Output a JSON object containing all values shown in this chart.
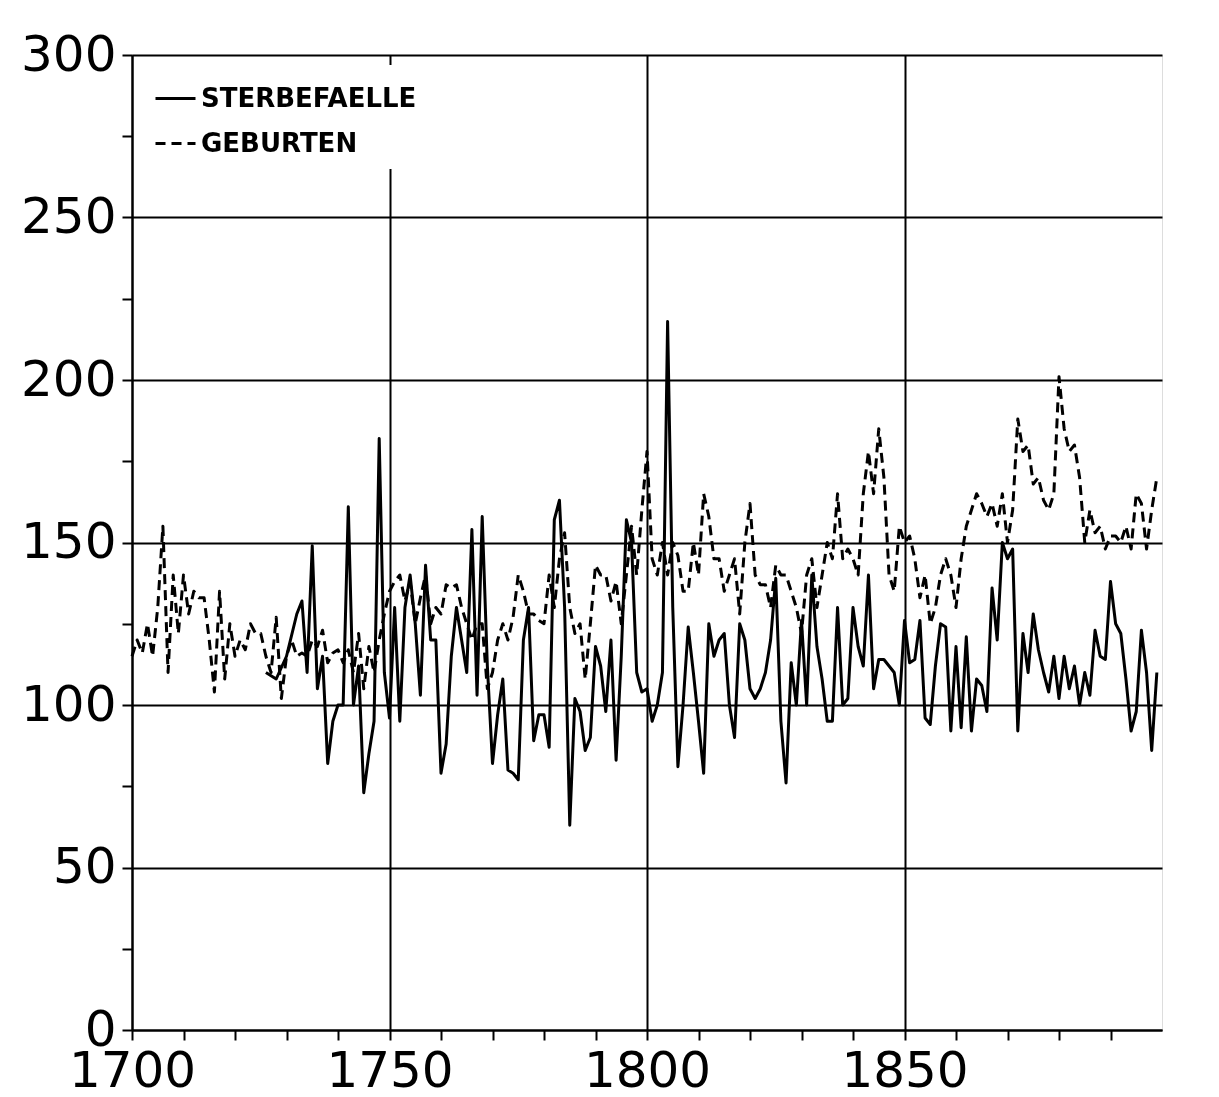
{
  "chart_data": {
    "type": "line",
    "xlim": [
      1700,
      1900
    ],
    "ylim": [
      0,
      300
    ],
    "xticks": [
      1700,
      {
        "value": 1710,
        "label": null
      },
      {
        "value": 1720,
        "label": null
      },
      {
        "value": 1730,
        "label": null
      },
      {
        "value": 1740,
        "label": null
      },
      1750,
      {
        "value": 1760,
        "label": null
      },
      {
        "value": 1770,
        "label": null
      },
      {
        "value": 1780,
        "label": null
      },
      {
        "value": 1790,
        "label": null
      },
      1800,
      {
        "value": 1810,
        "label": null
      },
      {
        "value": 1820,
        "label": null
      },
      {
        "value": 1830,
        "label": null
      },
      {
        "value": 1840,
        "label": null
      },
      1850,
      {
        "value": 1860,
        "label": null
      },
      {
        "value": 1870,
        "label": null
      },
      {
        "value": 1880,
        "label": null
      },
      {
        "value": 1890,
        "label": null
      }
    ],
    "yticks": [
      0,
      {
        "value": 25,
        "label": null
      },
      50,
      {
        "value": 75,
        "label": null
      },
      100,
      {
        "value": 125,
        "label": null
      },
      150,
      {
        "value": 175,
        "label": null
      },
      200,
      {
        "value": 225,
        "label": null
      },
      250,
      {
        "value": 275,
        "label": null
      },
      300
    ],
    "grid": true,
    "legend": "top left",
    "marker": "none",
    "series": [
      {
        "name": "STERBEFAELLE",
        "color": "#000000",
        "line_style": "solid",
        "x": [
          1726,
          1728,
          1730,
          1732,
          1733,
          1734,
          1735,
          1736,
          1737,
          1738,
          1739,
          1740,
          1741,
          1742,
          1743,
          1744,
          1745,
          1746,
          1747,
          1748,
          1749,
          1750,
          1751,
          1752,
          1753,
          1754,
          1755,
          1756,
          1757,
          1758,
          1759,
          1760,
          1761,
          1762,
          1763,
          1764,
          1765,
          1766,
          1767,
          1768,
          1769,
          1770,
          1771,
          1772,
          1773,
          1774,
          1775,
          1776,
          1777,
          1778,
          1779,
          1780,
          1781,
          1782,
          1783,
          1784,
          1785,
          1786,
          1787,
          1788,
          1789,
          1790,
          1791,
          1792,
          1793,
          1794,
          1795,
          1796,
          1797,
          1798,
          1799,
          1800,
          1801,
          1802,
          1803,
          1804,
          1805,
          1806,
          1807,
          1808,
          1809,
          1810,
          1811,
          1812,
          1813,
          1814,
          1815,
          1816,
          1817,
          1818,
          1819,
          1820,
          1821,
          1822,
          1823,
          1824,
          1825,
          1826,
          1827,
          1828,
          1829,
          1830,
          1831,
          1832,
          1833,
          1834,
          1835,
          1836,
          1837,
          1838,
          1839,
          1840,
          1841,
          1842,
          1843,
          1844,
          1845,
          1846,
          1847,
          1848,
          1849,
          1850,
          1851,
          1852,
          1853,
          1854,
          1855,
          1856,
          1857,
          1858,
          1859,
          1860,
          1861,
          1862,
          1863,
          1864,
          1865,
          1866,
          1867,
          1868,
          1869,
          1870,
          1871,
          1872,
          1873,
          1874,
          1875,
          1876,
          1877,
          1878,
          1879,
          1880,
          1881,
          1882,
          1883,
          1884,
          1885,
          1886,
          1887,
          1888,
          1889,
          1890,
          1891,
          1892,
          1893,
          1894,
          1895,
          1896,
          1897,
          1898,
          1899
        ],
        "values": [
          110,
          108,
          115,
          128,
          132,
          110,
          149,
          105,
          115,
          82,
          95,
          100,
          100,
          161,
          100,
          112,
          73,
          85,
          95,
          182,
          110,
          96,
          130,
          95,
          130,
          140,
          125,
          103,
          143,
          120,
          120,
          79,
          88,
          115,
          130,
          120,
          110,
          154,
          103,
          158,
          112,
          82,
          97,
          108,
          80,
          79,
          77,
          120,
          130,
          89,
          97,
          97,
          87,
          157,
          163,
          130,
          63,
          102,
          98,
          86,
          90,
          118,
          112,
          98,
          120,
          83,
          115,
          157,
          150,
          110,
          104,
          105,
          95,
          100,
          110,
          218,
          130,
          81,
          100,
          124,
          110,
          95,
          79,
          125,
          115,
          120,
          122,
          100,
          90,
          125,
          120,
          105,
          102,
          105,
          110,
          120,
          139,
          95,
          76,
          113,
          100,
          126,
          100,
          140,
          118,
          108,
          95,
          95,
          130,
          100,
          102,
          130,
          118,
          112,
          140,
          105,
          114,
          114,
          112,
          110,
          100,
          126,
          113,
          114,
          126,
          96,
          94,
          112,
          125,
          124,
          92,
          118,
          93,
          121,
          92,
          108,
          106,
          98,
          136,
          120,
          150,
          145,
          148,
          92,
          122,
          110,
          128,
          117,
          110,
          104,
          115,
          102,
          115,
          105,
          112,
          100,
          110,
          103,
          123,
          115,
          114,
          138,
          125,
          122,
          108,
          92,
          98,
          123,
          110,
          86,
          110
        ]
      },
      {
        "name": "GEBURTEN",
        "color": "#000000",
        "line_style": "dashed",
        "x": [
          1700,
          1701,
          1702,
          1703,
          1704,
          1705,
          1706,
          1707,
          1708,
          1709,
          1710,
          1711,
          1712,
          1713,
          1714,
          1715,
          1716,
          1717,
          1718,
          1719,
          1720,
          1721,
          1722,
          1723,
          1724,
          1725,
          1726,
          1727,
          1728,
          1729,
          1730,
          1731,
          1732,
          1733,
          1734,
          1735,
          1736,
          1737,
          1738,
          1739,
          1740,
          1741,
          1742,
          1743,
          1744,
          1745,
          1746,
          1747,
          1748,
          1749,
          1750,
          1751,
          1752,
          1753,
          1754,
          1755,
          1756,
          1757,
          1758,
          1759,
          1760,
          1761,
          1762,
          1763,
          1764,
          1765,
          1766,
          1767,
          1768,
          1769,
          1770,
          1771,
          1772,
          1773,
          1774,
          1775,
          1776,
          1777,
          1778,
          1779,
          1780,
          1781,
          1782,
          1783,
          1784,
          1785,
          1786,
          1787,
          1788,
          1789,
          1790,
          1791,
          1792,
          1793,
          1794,
          1795,
          1796,
          1797,
          1798,
          1799,
          1800,
          1801,
          1802,
          1803,
          1804,
          1805,
          1806,
          1807,
          1808,
          1809,
          1810,
          1811,
          1812,
          1813,
          1814,
          1815,
          1816,
          1817,
          1818,
          1819,
          1820,
          1821,
          1822,
          1823,
          1824,
          1825,
          1826,
          1827,
          1828,
          1829,
          1830,
          1831,
          1832,
          1833,
          1834,
          1835,
          1836,
          1837,
          1838,
          1839,
          1840,
          1841,
          1842,
          1843,
          1844,
          1845,
          1846,
          1847,
          1848,
          1849,
          1850,
          1851,
          1852,
          1853,
          1854,
          1855,
          1856,
          1857,
          1858,
          1859,
          1860,
          1861,
          1862,
          1863,
          1864,
          1865,
          1866,
          1867,
          1868,
          1869,
          1870,
          1871,
          1872,
          1873,
          1874,
          1875,
          1876,
          1877,
          1878,
          1879,
          1880,
          1881,
          1882,
          1883,
          1884,
          1885,
          1886,
          1887,
          1888,
          1889,
          1890,
          1891,
          1892,
          1893,
          1894,
          1895,
          1896,
          1897,
          1898,
          1899
        ],
        "values": [
          115,
          120,
          116,
          125,
          115,
          130,
          155,
          110,
          140,
          122,
          140,
          128,
          135,
          133,
          133,
          120,
          104,
          135,
          108,
          125,
          115,
          120,
          117,
          125,
          122,
          122,
          115,
          110,
          127,
          102,
          115,
          120,
          115,
          116,
          115,
          120,
          118,
          123,
          113,
          116,
          117,
          113,
          117,
          110,
          122,
          105,
          118,
          110,
          120,
          128,
          135,
          138,
          140,
          132,
          138,
          125,
          133,
          140,
          125,
          130,
          128,
          137,
          136,
          137,
          130,
          125,
          120,
          125,
          125,
          105,
          110,
          120,
          125,
          120,
          127,
          140,
          135,
          128,
          128,
          126,
          125,
          140,
          130,
          145,
          153,
          130,
          122,
          125,
          108,
          125,
          143,
          140,
          140,
          132,
          138,
          125,
          140,
          155,
          140,
          160,
          178,
          145,
          140,
          150,
          140,
          150,
          146,
          135,
          135,
          150,
          140,
          165,
          158,
          145,
          145,
          135,
          140,
          145,
          128,
          150,
          162,
          140,
          137,
          137,
          130,
          143,
          140,
          140,
          135,
          130,
          122,
          140,
          145,
          130,
          140,
          150,
          145,
          165,
          145,
          148,
          145,
          140,
          165,
          178,
          165,
          185,
          170,
          140,
          135,
          155,
          150,
          152,
          145,
          133,
          140,
          125,
          130,
          140,
          145,
          140,
          130,
          145,
          155,
          160,
          165,
          162,
          158,
          162,
          155,
          165,
          150,
          160,
          188,
          178,
          180,
          168,
          170,
          163,
          160,
          165,
          201,
          185,
          178,
          180,
          170,
          150,
          160,
          153,
          155,
          148,
          152,
          152,
          150,
          155,
          148,
          165,
          162,
          148,
          160,
          170
        ]
      }
    ]
  }
}
